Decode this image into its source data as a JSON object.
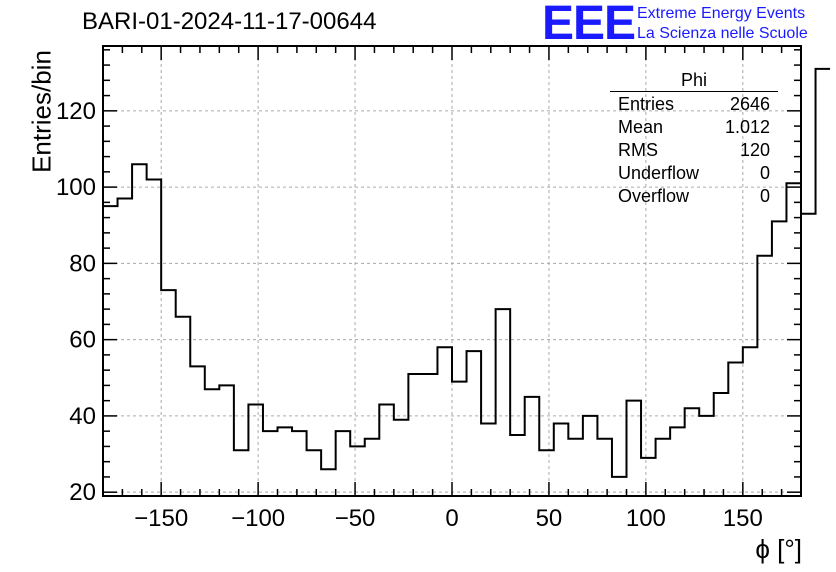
{
  "title": "BARI-01-2024-11-17-00644",
  "logo": {
    "text": "EEE",
    "line1": "Extreme Energy Events",
    "line2": "La Scienza nelle Scuole",
    "color": "#1a1aff"
  },
  "stats": {
    "name": "Phi",
    "rows": [
      {
        "label": "Entries",
        "value": "2646"
      },
      {
        "label": "Mean",
        "value": "1.012"
      },
      {
        "label": "RMS",
        "value": "120"
      },
      {
        "label": "Underflow",
        "value": "0"
      },
      {
        "label": "Overflow",
        "value": "0"
      }
    ]
  },
  "chart_data": {
    "type": "bar",
    "style": "step-histogram",
    "xlabel": "ϕ [°]",
    "ylabel": "Entries/bin",
    "xlim": [
      -180,
      180
    ],
    "ylim": [
      19,
      137
    ],
    "grid": true,
    "bin_width": 7.5,
    "x_ticks": [
      -150,
      -100,
      -50,
      0,
      50,
      100,
      150
    ],
    "y_ticks": [
      20,
      40,
      60,
      80,
      100,
      120
    ],
    "values": [
      95,
      97,
      106,
      102,
      73,
      66,
      53,
      47,
      48,
      31,
      43,
      36,
      37,
      36,
      31,
      26,
      36,
      32,
      34,
      43,
      39,
      51,
      51,
      58,
      49,
      57,
      38,
      68,
      35,
      45,
      31,
      38,
      34,
      40,
      34,
      24,
      44,
      29,
      34,
      37,
      42,
      40,
      46,
      54,
      58,
      82,
      91,
      101,
      93,
      131
    ],
    "line_color": "#000000"
  }
}
